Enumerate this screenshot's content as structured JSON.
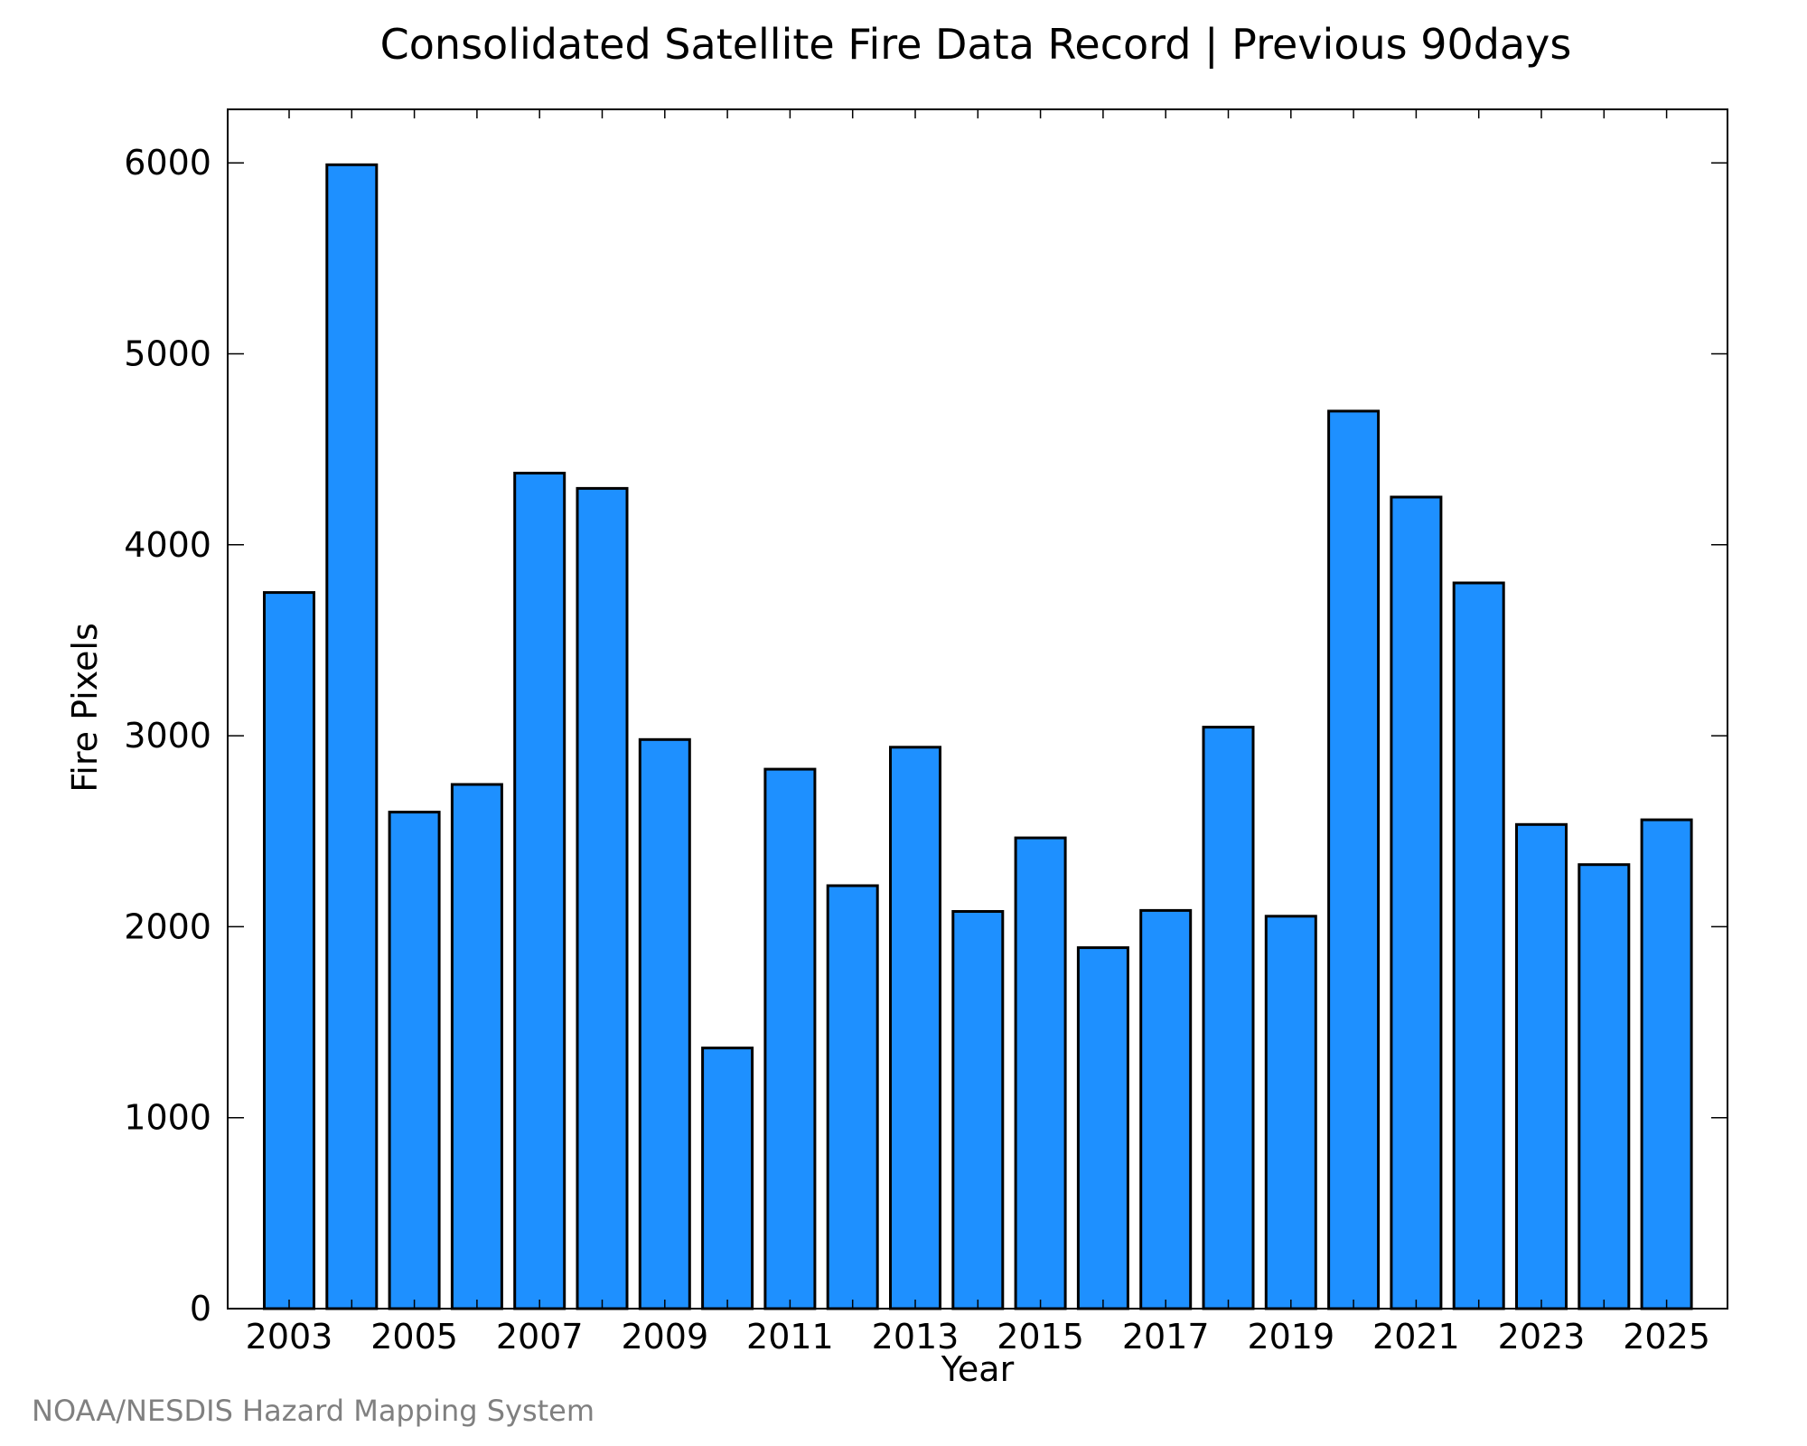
{
  "chart_data": {
    "type": "bar",
    "title": "Consolidated Satellite Fire Data Record | Previous 90days",
    "xlabel": "Year",
    "ylabel": "Fire Pixels",
    "categories": [
      "2003",
      "2004",
      "2005",
      "2006",
      "2007",
      "2008",
      "2009",
      "2010",
      "2011",
      "2012",
      "2013",
      "2014",
      "2015",
      "2016",
      "2017",
      "2018",
      "2019",
      "2020",
      "2021",
      "2022",
      "2023",
      "2024",
      "2025"
    ],
    "values": [
      3750,
      5990,
      2600,
      2745,
      4375,
      4295,
      2980,
      1365,
      2825,
      2215,
      2940,
      2080,
      2465,
      1890,
      2085,
      3045,
      2055,
      4700,
      4250,
      3800,
      2535,
      2325,
      2560
    ],
    "x_tick_labels": [
      "2003",
      "2005",
      "2007",
      "2009",
      "2011",
      "2013",
      "2015",
      "2017",
      "2019",
      "2021",
      "2023",
      "2025"
    ],
    "y_ticks": [
      0,
      1000,
      2000,
      3000,
      4000,
      5000,
      6000
    ],
    "ylim": [
      0,
      6280
    ],
    "grid": false,
    "bar_color": "#1e90ff"
  },
  "footer": {
    "credit": "NOAA/NESDIS Hazard Mapping System"
  }
}
